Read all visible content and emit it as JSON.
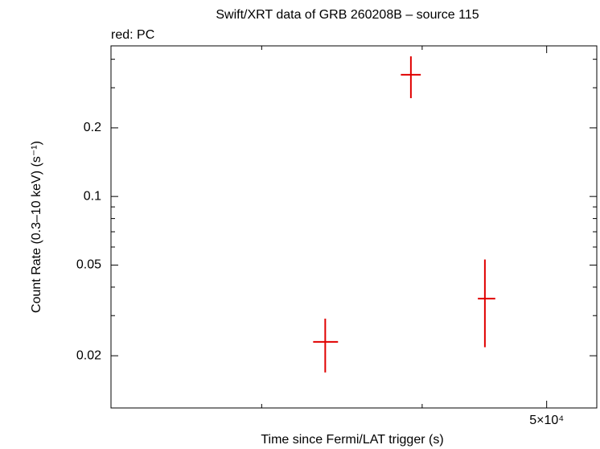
{
  "chart_data": {
    "type": "errorbar",
    "title": "Swift/XRT data of GRB 260208B – source 115",
    "subtitle": "red: PC",
    "x_label": "Time since Fermi/LAT trigger (s)",
    "y_label": "Count Rate (0.3–10 keV) (s⁻¹)",
    "log_x": true,
    "log_y": true,
    "xlim": [
      22900,
      54700
    ],
    "ylim": [
      0.0118,
      0.458
    ],
    "xticks": [
      {
        "value": 50000,
        "label": "5×10⁴"
      }
    ],
    "xminor": [
      30000,
      40000
    ],
    "yticks": [
      0.02,
      0.05,
      0.1,
      0.2
    ],
    "yminor": [
      0.03,
      0.04,
      0.06,
      0.07,
      0.08,
      0.09,
      0.3,
      0.4
    ],
    "series": [
      {
        "name": "PC",
        "color": "#e00000",
        "x": [
          33620,
          39200,
          44760
        ],
        "x_min": [
          32900,
          38500,
          44200
        ],
        "x_max": [
          34400,
          39900,
          45600
        ],
        "values": [
          0.023,
          0.342,
          0.0356
        ],
        "y_min": [
          0.0169,
          0.27,
          0.0218
        ],
        "y_max": [
          0.0291,
          0.412,
          0.0529
        ]
      }
    ]
  }
}
